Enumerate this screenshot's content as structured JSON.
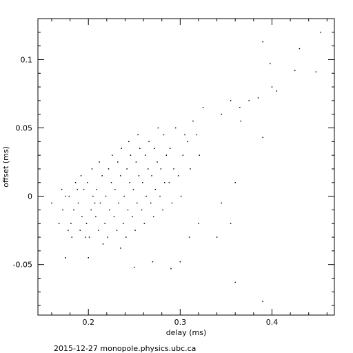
{
  "chart_data": {
    "type": "scatter",
    "xlabel": "delay (ms)",
    "ylabel": "offset (ms)",
    "footer": "2015-12-27  monopole.physics.ubc.ca",
    "color": "#000000",
    "xlim": [
      0.145,
      0.468
    ],
    "ylim": [
      -0.087,
      0.13
    ],
    "xticks": [
      0.2,
      0.3,
      0.4
    ],
    "yticks": [
      -0.05,
      0,
      0.05,
      0.1
    ],
    "xminorticks": [
      0.16,
      0.18,
      0.22,
      0.24,
      0.26,
      0.28,
      0.32,
      0.34,
      0.36,
      0.38,
      0.42,
      0.44,
      0.46
    ],
    "yminorticks": [
      -0.08,
      -0.07,
      -0.06,
      -0.04,
      -0.03,
      -0.02,
      -0.01,
      0.01,
      0.02,
      0.03,
      0.04,
      0.06,
      0.07,
      0.08,
      0.09,
      0.11,
      0.12
    ],
    "x": [
      0.172,
      0.168,
      0.175,
      0.171,
      0.178,
      0.181,
      0.184,
      0.179,
      0.186,
      0.182,
      0.188,
      0.191,
      0.193,
      0.189,
      0.195,
      0.192,
      0.197,
      0.201,
      0.198,
      0.203,
      0.205,
      0.199,
      0.204,
      0.207,
      0.211,
      0.208,
      0.213,
      0.209,
      0.215,
      0.212,
      0.216,
      0.221,
      0.218,
      0.223,
      0.219,
      0.225,
      0.222,
      0.226,
      0.231,
      0.228,
      0.233,
      0.229,
      0.235,
      0.232,
      0.236,
      0.241,
      0.238,
      0.243,
      0.239,
      0.245,
      0.242,
      0.246,
      0.244,
      0.251,
      0.248,
      0.253,
      0.249,
      0.255,
      0.252,
      0.256,
      0.254,
      0.261,
      0.258,
      0.263,
      0.259,
      0.265,
      0.262,
      0.266,
      0.271,
      0.268,
      0.273,
      0.269,
      0.275,
      0.272,
      0.276,
      0.281,
      0.278,
      0.283,
      0.279,
      0.285,
      0.282,
      0.291,
      0.288,
      0.293,
      0.289,
      0.295,
      0.301,
      0.298,
      0.303,
      0.305,
      0.311,
      0.308,
      0.314,
      0.321,
      0.318,
      0.453,
      0.43,
      0.448,
      0.425,
      0.39,
      0.398,
      0.405,
      0.4,
      0.385,
      0.375,
      0.355,
      0.365,
      0.366,
      0.345,
      0.325,
      0.39,
      0.36,
      0.345,
      0.355,
      0.36,
      0.39,
      0.34,
      0.3,
      0.29,
      0.27,
      0.25,
      0.2,
      0.175,
      0.235,
      0.16,
      0.32,
      0.31
    ],
    "values": [
      -0.01,
      -0.02,
      0,
      0.005,
      -0.025,
      -0.02,
      -0.01,
      0,
      0.01,
      -0.03,
      0.005,
      -0.025,
      -0.015,
      -0.005,
      0.005,
      0.015,
      -0.03,
      -0.03,
      -0.02,
      -0.01,
      0,
      0.01,
      0.02,
      -0.005,
      -0.025,
      -0.015,
      -0.005,
      0.005,
      0.015,
      0.025,
      -0.035,
      -0.03,
      -0.02,
      -0.01,
      0,
      0.01,
      0.02,
      0.03,
      -0.025,
      -0.015,
      -0.005,
      0.005,
      0.015,
      0.025,
      0.035,
      -0.03,
      -0.02,
      -0.01,
      0,
      0.01,
      0.02,
      0.03,
      0.04,
      -0.025,
      -0.015,
      -0.005,
      0.005,
      0.015,
      0.025,
      0.035,
      0.045,
      -0.02,
      -0.01,
      0,
      0.01,
      0.02,
      0.03,
      0.04,
      -0.015,
      -0.005,
      0.005,
      0.015,
      0.025,
      0.035,
      0.05,
      -0.01,
      0,
      0.01,
      0.02,
      0.03,
      0.045,
      -0.005,
      0.01,
      0.02,
      0.035,
      0.05,
      0,
      0.015,
      0.03,
      0.045,
      0.02,
      0.04,
      0.055,
      0.03,
      0.045,
      0.12,
      0.108,
      0.091,
      0.092,
      0.113,
      0.097,
      0.077,
      0.08,
      0.072,
      0.07,
      0.07,
      0.065,
      0.055,
      0.06,
      0.065,
      0.043,
      0.01,
      -0.005,
      -0.02,
      -0.063,
      -0.077,
      -0.03,
      -0.048,
      -0.053,
      -0.048,
      -0.052,
      -0.045,
      -0.045,
      -0.038,
      -0.005,
      -0.02,
      -0.03
    ]
  }
}
